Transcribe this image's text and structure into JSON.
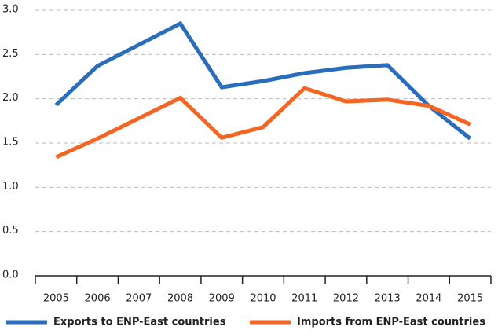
{
  "chart_data": {
    "type": "line",
    "categories": [
      "2005",
      "2006",
      "2007",
      "2008",
      "2009",
      "2010",
      "2011",
      "2012",
      "2013",
      "2014",
      "2015"
    ],
    "series": [
      {
        "name": "Exports to ENP-East countries",
        "color": "#2a6ebb",
        "values": [
          1.93,
          2.37,
          2.61,
          2.85,
          2.13,
          2.2,
          2.29,
          2.35,
          2.38,
          1.92,
          1.55
        ]
      },
      {
        "name": "Imports from ENP-East countries",
        "color": "#f26522",
        "values": [
          1.34,
          1.55,
          1.78,
          2.01,
          1.56,
          1.68,
          2.12,
          1.97,
          1.99,
          1.92,
          1.71
        ]
      }
    ],
    "ylim": [
      0,
      3
    ],
    "yticks": [
      {
        "value": 0,
        "label": "0.0"
      },
      0.5,
      {
        "value": 1,
        "label": "1.0"
      },
      1.5,
      {
        "value": 2,
        "label": "2.0"
      },
      2.5,
      {
        "value": 3,
        "label": "3.0"
      }
    ],
    "grid": true,
    "legend": "bottom"
  }
}
